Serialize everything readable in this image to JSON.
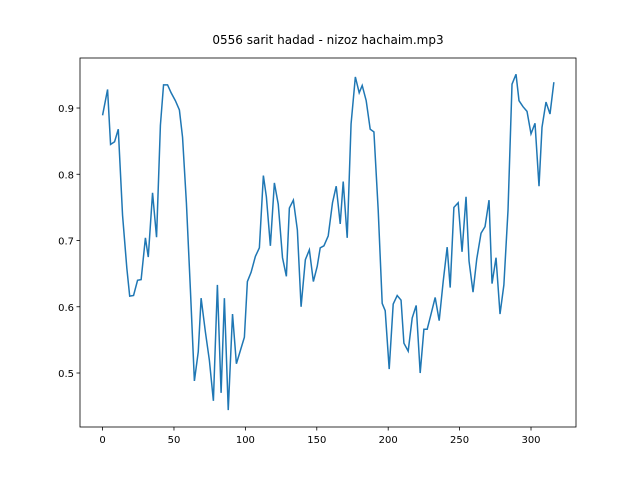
{
  "chart_data": {
    "type": "line",
    "title": "0556 sarit hadad - nizoz hachaim.mp3",
    "x": [
      0,
      3.5,
      5.6,
      8.4,
      11,
      14,
      17,
      19,
      21.7,
      24.5,
      27,
      30,
      32,
      35,
      37.8,
      40.5,
      42.7,
      45.5,
      48,
      51,
      53.8,
      56,
      58.7,
      61.5,
      64.3,
      67,
      69,
      72,
      74.8,
      77.6,
      80.4,
      83,
      85.3,
      88,
      91,
      93.7,
      96.5,
      99.3,
      101.4,
      104,
      107,
      109.8,
      112.6,
      114.7,
      117.5,
      120.3,
      123,
      126,
      128.7,
      130.8,
      133.6,
      136.4,
      139,
      142,
      144.8,
      147.6,
      150.3,
      152.4,
      155,
      158,
      161,
      163.6,
      166.4,
      168.5,
      171.3,
      174,
      177,
      179.7,
      181.8,
      184.6,
      187.4,
      190,
      193,
      195.8,
      197.9,
      200.7,
      203.5,
      206.3,
      209,
      211,
      214,
      216.8,
      219.6,
      222.4,
      225,
      227.3,
      230,
      232.9,
      235.7,
      238.5,
      241.3,
      243.4,
      246,
      249,
      251.7,
      254.5,
      256.6,
      259.4,
      262,
      265,
      267.8,
      270.6,
      272.7,
      275.5,
      278.3,
      281,
      283.9,
      286.7,
      289.5,
      291.6,
      294.4,
      297.2,
      300,
      302.8,
      305.6,
      307.7,
      310.5,
      313.3,
      316
    ],
    "series": [
      {
        "color": "#1f77b4",
        "values": [
          0.889,
          0.928,
          0.845,
          0.849,
          0.868,
          0.738,
          0.658,
          0.616,
          0.617,
          0.64,
          0.641,
          0.704,
          0.675,
          0.772,
          0.705,
          0.874,
          0.935,
          0.935,
          0.923,
          0.911,
          0.897,
          0.856,
          0.757,
          0.626,
          0.488,
          0.532,
          0.613,
          0.562,
          0.519,
          0.458,
          0.633,
          0.47,
          0.613,
          0.444,
          0.589,
          0.514,
          0.534,
          0.554,
          0.638,
          0.652,
          0.676,
          0.689,
          0.798,
          0.766,
          0.692,
          0.787,
          0.755,
          0.674,
          0.646,
          0.749,
          0.761,
          0.716,
          0.6,
          0.671,
          0.686,
          0.638,
          0.661,
          0.689,
          0.692,
          0.707,
          0.757,
          0.782,
          0.725,
          0.789,
          0.704,
          0.876,
          0.947,
          0.923,
          0.934,
          0.911,
          0.868,
          0.864,
          0.746,
          0.605,
          0.594,
          0.506,
          0.604,
          0.617,
          0.61,
          0.545,
          0.533,
          0.583,
          0.602,
          0.5,
          0.566,
          0.566,
          0.589,
          0.614,
          0.579,
          0.638,
          0.69,
          0.629,
          0.75,
          0.757,
          0.683,
          0.766,
          0.669,
          0.622,
          0.672,
          0.711,
          0.721,
          0.761,
          0.635,
          0.674,
          0.589,
          0.633,
          0.746,
          0.936,
          0.951,
          0.911,
          0.902,
          0.895,
          0.861,
          0.877,
          0.782,
          0.871,
          0.909,
          0.891,
          0.939
        ]
      }
    ],
    "xlim": [
      -15.8,
      331.5
    ],
    "ylim": [
      0.4185,
      0.9755
    ],
    "xticks": [
      0,
      50,
      100,
      150,
      200,
      250,
      300
    ],
    "yticks": [
      0.5,
      0.6,
      0.7,
      0.8,
      0.9
    ]
  }
}
